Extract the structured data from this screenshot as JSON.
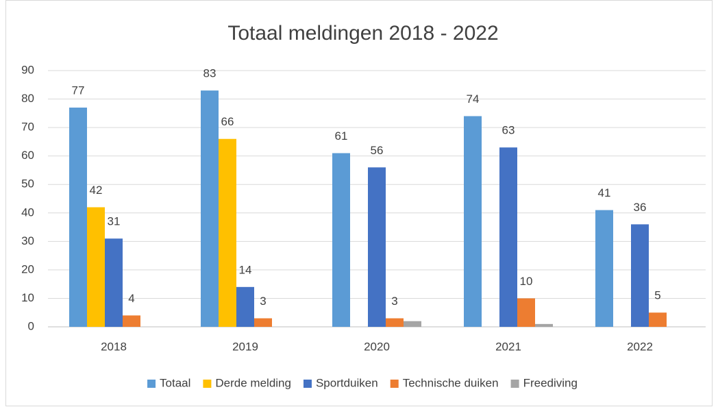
{
  "chart_data": {
    "type": "bar",
    "title": "Totaal meldingen 2018 - 2022",
    "categories": [
      "2018",
      "2019",
      "2020",
      "2021",
      "2022"
    ],
    "series": [
      {
        "name": "Totaal",
        "color": "#5b9bd5",
        "values": [
          77,
          83,
          61,
          74,
          41
        ],
        "show_labels": true
      },
      {
        "name": "Derde melding",
        "color": "#ffc000",
        "values": [
          42,
          66,
          null,
          null,
          null
        ],
        "show_labels": true
      },
      {
        "name": "Sportduiken",
        "color": "#4472c4",
        "values": [
          31,
          14,
          56,
          63,
          36
        ],
        "show_labels": true
      },
      {
        "name": "Technische duiken",
        "color": "#ed7d31",
        "values": [
          4,
          3,
          3,
          10,
          5
        ],
        "show_labels": true
      },
      {
        "name": "Freediving",
        "color": "#a5a5a5",
        "values": [
          null,
          null,
          2,
          1,
          null
        ],
        "show_labels": false
      }
    ],
    "ylim": [
      0,
      90
    ],
    "yticks": [
      0,
      10,
      20,
      30,
      40,
      50,
      60,
      70,
      80,
      90
    ],
    "grid": true,
    "legend": "bottom"
  }
}
